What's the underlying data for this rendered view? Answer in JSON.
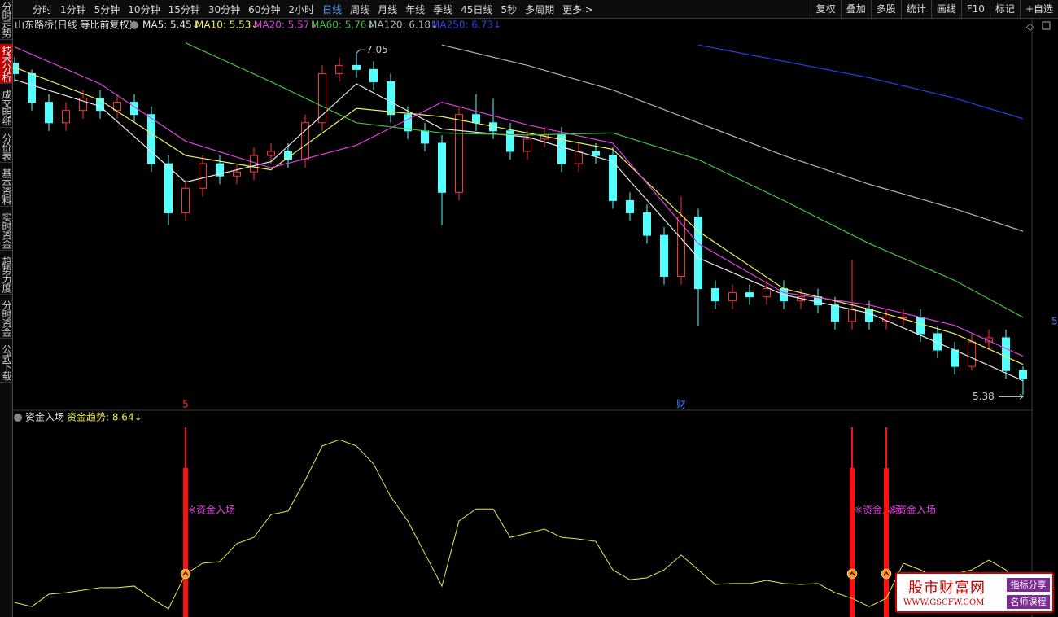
{
  "toolbar": {
    "periods": [
      "分时",
      "1分钟",
      "5分钟",
      "10分钟",
      "15分钟",
      "30分钟",
      "60分钟",
      "2小时",
      "日线",
      "周线",
      "月线",
      "年线",
      "季线",
      "45日线",
      "5秒",
      "多周期",
      "更多 >"
    ],
    "active_period": "日线",
    "tools": [
      "复权",
      "叠加",
      "多股",
      "统计",
      "画线",
      "F10",
      "标记",
      "+自选"
    ]
  },
  "sidebar": [
    "分时走势",
    "技术分析",
    "成交明细",
    "分价表",
    "基本资料",
    "实时资金",
    "趋势力度",
    "分时资金",
    "公式下载"
  ],
  "active_tab": "技术分析",
  "right_label": "5",
  "chart_data": [
    {
      "type": "candlestick",
      "title": "山东路桥(日线 等比前复权)",
      "up_color": "#ff3232",
      "down_color": "#54ffff",
      "ylim": [
        5.31,
        7.21
      ],
      "open": [
        7.0,
        6.95,
        6.81,
        6.71,
        6.77,
        6.83,
        6.77,
        6.81,
        6.75,
        6.51,
        6.27,
        6.39,
        6.51,
        6.45,
        6.47,
        6.55,
        6.57,
        6.53,
        6.71,
        6.95,
        6.99,
        6.97,
        6.91,
        6.75,
        6.67,
        6.61,
        6.37,
        6.75,
        6.71,
        6.67,
        6.57,
        6.63,
        6.65,
        6.51,
        6.57,
        6.55,
        6.33,
        6.27,
        6.16,
        5.96,
        6.25,
        5.9,
        5.84,
        5.88,
        5.86,
        5.9,
        5.84,
        5.86,
        5.82,
        5.74,
        5.8,
        5.74,
        5.76,
        5.76,
        5.68,
        5.6,
        5.52,
        5.64,
        5.66,
        5.5
      ],
      "high": [
        7.03,
        6.97,
        6.85,
        6.81,
        6.87,
        6.87,
        6.85,
        6.85,
        6.79,
        6.55,
        6.43,
        6.55,
        6.55,
        6.51,
        6.59,
        6.61,
        6.61,
        6.75,
        6.99,
        7.03,
        7.05,
        7.01,
        6.95,
        6.79,
        6.71,
        6.65,
        6.79,
        6.85,
        6.83,
        6.71,
        6.67,
        6.69,
        6.69,
        6.61,
        6.61,
        6.59,
        6.37,
        6.31,
        6.2,
        6.35,
        6.29,
        5.94,
        5.92,
        5.92,
        5.94,
        5.94,
        5.9,
        5.9,
        5.86,
        6.04,
        5.84,
        5.8,
        5.8,
        5.8,
        5.72,
        5.64,
        5.68,
        5.7,
        5.7,
        5.52
      ],
      "low": [
        6.91,
        6.77,
        6.67,
        6.67,
        6.73,
        6.73,
        6.73,
        6.71,
        6.47,
        6.21,
        6.23,
        6.35,
        6.41,
        6.41,
        6.43,
        6.51,
        6.49,
        6.49,
        6.67,
        6.91,
        6.93,
        6.87,
        6.71,
        6.63,
        6.57,
        6.21,
        6.33,
        6.67,
        6.63,
        6.53,
        6.53,
        6.59,
        6.47,
        6.47,
        6.51,
        6.29,
        6.23,
        6.12,
        5.92,
        5.92,
        5.72,
        5.8,
        5.8,
        5.82,
        5.82,
        5.8,
        5.8,
        5.78,
        5.7,
        5.7,
        5.7,
        5.7,
        5.72,
        5.64,
        5.56,
        5.48,
        5.5,
        5.6,
        5.46,
        5.38
      ],
      "close": [
        6.95,
        6.81,
        6.71,
        6.77,
        6.83,
        6.77,
        6.81,
        6.75,
        6.51,
        6.27,
        6.39,
        6.51,
        6.45,
        6.47,
        6.55,
        6.57,
        6.53,
        6.71,
        6.95,
        6.99,
        6.97,
        6.91,
        6.75,
        6.67,
        6.61,
        6.37,
        6.75,
        6.71,
        6.67,
        6.57,
        6.63,
        6.65,
        6.51,
        6.57,
        6.55,
        6.33,
        6.27,
        6.16,
        5.96,
        6.25,
        5.9,
        5.84,
        5.88,
        5.86,
        5.9,
        5.84,
        5.86,
        5.82,
        5.74,
        5.8,
        5.74,
        5.76,
        5.76,
        5.68,
        5.6,
        5.52,
        5.64,
        5.66,
        5.5,
        5.46
      ],
      "lines": [
        {
          "name": "MA5: 5.45↓",
          "color": "#e6e6e6",
          "x": [
            0,
            5,
            10,
            15,
            20,
            25,
            30,
            35,
            40,
            45,
            50,
            55,
            59
          ],
          "values": [
            6.92,
            6.79,
            6.42,
            6.52,
            6.9,
            6.68,
            6.64,
            6.52,
            6.05,
            5.87,
            5.78,
            5.6,
            5.45
          ]
        },
        {
          "name": "MA10: 5.53↓",
          "color": "#f0f060",
          "x": [
            0,
            5,
            10,
            15,
            20,
            25,
            30,
            35,
            40,
            45,
            50,
            55,
            59
          ],
          "values": [
            6.98,
            6.82,
            6.55,
            6.48,
            6.78,
            6.74,
            6.66,
            6.58,
            6.18,
            5.9,
            5.8,
            5.68,
            5.53
          ]
        },
        {
          "name": "MA20: 5.57↓",
          "color": "#e040e0",
          "x": [
            0,
            5,
            10,
            15,
            20,
            25,
            30,
            35,
            40,
            45,
            50,
            55,
            59
          ],
          "values": [
            7.08,
            6.9,
            6.62,
            6.49,
            6.6,
            6.81,
            6.7,
            6.61,
            6.12,
            5.88,
            5.82,
            5.72,
            5.57
          ]
        },
        {
          "name": "MA60: 5.76↓",
          "color": "#40c040",
          "x": [
            0,
            5,
            10,
            15,
            20,
            25,
            30,
            35,
            40,
            45,
            50,
            55,
            59
          ],
          "values": [
            null,
            null,
            7.1,
            6.91,
            6.71,
            6.66,
            6.65,
            6.66,
            6.53,
            6.33,
            6.12,
            5.94,
            5.76
          ]
        },
        {
          "name": "MA120: 6.18↓",
          "color": "#b4b4b4",
          "x": [
            0,
            5,
            10,
            15,
            20,
            25,
            30,
            35,
            40,
            45,
            50,
            55,
            59
          ],
          "values": [
            null,
            null,
            null,
            null,
            null,
            7.09,
            6.99,
            6.87,
            6.71,
            6.55,
            6.41,
            6.29,
            6.18
          ]
        },
        {
          "name": "MA250: 6.73↓",
          "color": "#2840e8",
          "x": [
            0,
            5,
            10,
            15,
            20,
            25,
            30,
            35,
            40,
            45,
            50,
            55,
            59
          ],
          "values": [
            null,
            null,
            null,
            null,
            null,
            null,
            null,
            null,
            7.09,
            7.01,
            6.93,
            6.83,
            6.73
          ]
        }
      ],
      "annotations": [
        {
          "index": 10,
          "label": "5",
          "color": "#ff3030"
        },
        {
          "index": 39,
          "label": "财",
          "color": "#4a86ff"
        }
      ]
    },
    {
      "type": "line",
      "title": "资金入场",
      "ylim": [
        0,
        60
      ],
      "series": [
        {
          "name": "资金趋势: 8.64↓",
          "color": "#e8e850",
          "values": [
            4.6,
            3.3,
            7.2,
            7.7,
            8.5,
            9.3,
            9.3,
            9.8,
            5.9,
            2.6,
            13.6,
            17.0,
            17.5,
            23.2,
            25.2,
            32.4,
            33.5,
            43.3,
            54.1,
            56.1,
            54.1,
            48.4,
            38.1,
            30.4,
            20.1,
            9.8,
            30.4,
            34.2,
            34.2,
            25.2,
            26.5,
            27.8,
            25.2,
            24.7,
            23.9,
            14.9,
            11.8,
            12.4,
            14.9,
            19.6,
            14.9,
            10.3,
            10.6,
            10.6,
            11.6,
            10.6,
            10.3,
            10.6,
            7.7,
            5.9,
            3.3,
            5.9,
            17.0,
            14.9,
            11.8,
            13.6,
            14.9,
            18.0,
            14.9,
            8.64
          ]
        }
      ],
      "signals": [
        {
          "index": 10,
          "label": "※资金入场"
        },
        {
          "index": 49,
          "label": "※资金入场"
        },
        {
          "index": 51,
          "label": "※资金入场"
        }
      ],
      "signal_color": "#ff1010",
      "label_color": "#e040e0"
    }
  ],
  "watermark": {
    "title": "股市财富网",
    "url": "WWW.GSCFW.COM",
    "tags": [
      "指标分享",
      "名师课程"
    ]
  }
}
